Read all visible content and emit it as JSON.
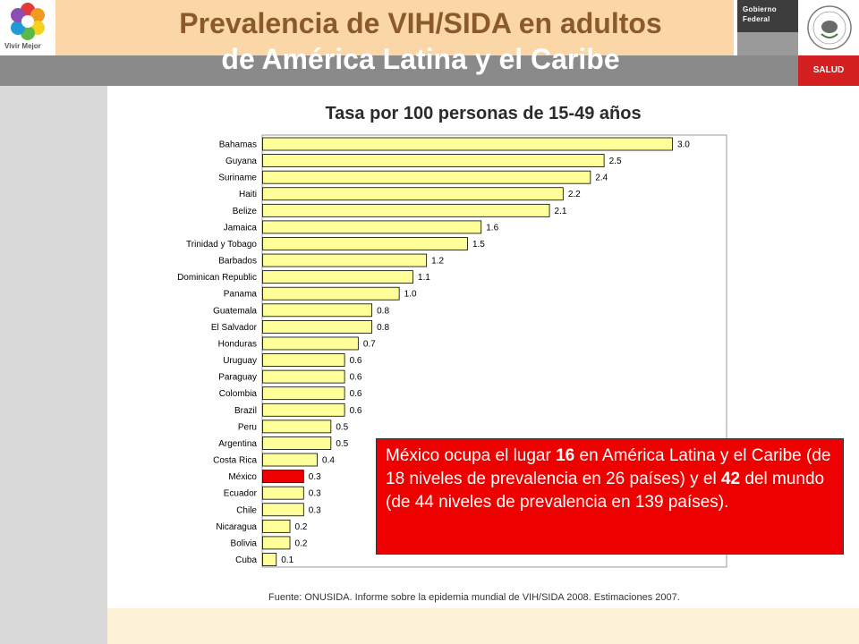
{
  "header": {
    "title_line1": "Prevalencia de VIH/SIDA en adultos",
    "title_line2": "de América Latina y el Caribe",
    "logo_caption": "Vivir Mejor",
    "gov_line1": "Gobierno",
    "gov_line2": "Federal",
    "salud_label": "SALUD"
  },
  "colors": {
    "bar_default": "#ffff99",
    "bar_highlight": "#ee0000",
    "callout_bg": "#ee0000",
    "arrow": "#2233cc"
  },
  "chart_data": {
    "type": "bar",
    "orientation": "horizontal",
    "title": "Tasa por 100 personas de 15-49 años",
    "categories": [
      "Bahamas",
      "Guyana",
      "Suriname",
      "Haiti",
      "Belize",
      "Jamaica",
      "Trinidad y Tobago",
      "Barbados",
      "Dominican Republic",
      "Panama",
      "Guatemala",
      "El Salvador",
      "Honduras",
      "Uruguay",
      "Paraguay",
      "Colombia",
      "Brazil",
      "Peru",
      "Argentina",
      "Costa Rica",
      "México",
      "Ecuador",
      "Chile",
      "Nicaragua",
      "Bolivia",
      "Cuba"
    ],
    "values": [
      3.0,
      2.5,
      2.4,
      2.2,
      2.1,
      1.6,
      1.5,
      1.2,
      1.1,
      1.0,
      0.8,
      0.8,
      0.7,
      0.6,
      0.6,
      0.6,
      0.6,
      0.5,
      0.5,
      0.4,
      0.3,
      0.3,
      0.3,
      0.2,
      0.2,
      0.1
    ],
    "value_labels": [
      "3.0",
      "2.5",
      "2.4",
      "2.2",
      "2.1",
      "1.6",
      "1.5",
      "1.2",
      "1.1",
      "1.0",
      "0.8",
      "0.8",
      "0.7",
      "0.6",
      "0.6",
      "0.6",
      "0.6",
      "0.5",
      "0.5",
      "0.4",
      "0.3",
      "0.3",
      "0.3",
      "0.2",
      "0.2",
      "0.1"
    ],
    "highlight_category": "México",
    "xlim": [
      0,
      3.4
    ],
    "grid": false,
    "legend": "none"
  },
  "callout": {
    "p1": "México ocupa el lugar ",
    "b1": "16",
    "p2": " en América Latina y el Caribe (de 18 niveles de prevalencia  en 26 países) y el ",
    "b2": "42",
    "p3": " del mundo (de 44 niveles de prevalencia en 139 países)."
  },
  "source": "Fuente: ONUSIDA. Informe sobre la epidemia mundial de VIH/SIDA 2008. Estimaciones 2007."
}
